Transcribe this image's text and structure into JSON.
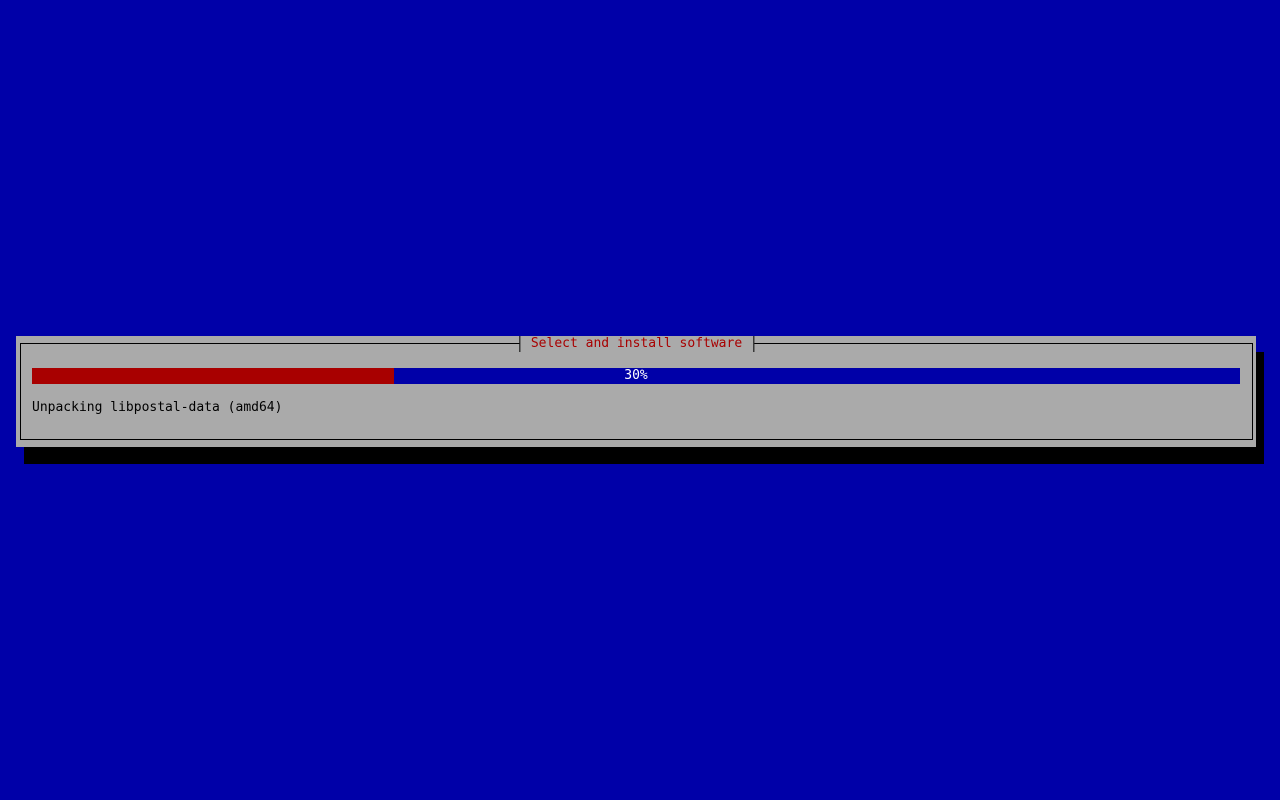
{
  "dialog": {
    "title": "Select and install software",
    "progress_percent": 30,
    "progress_label": "30%",
    "status": "Unpacking libpostal-data (amd64)"
  },
  "colors": {
    "background": "#0000a8",
    "dialog": "#aaaaaa",
    "progress_fill": "#a80000",
    "title": "#a80000"
  }
}
